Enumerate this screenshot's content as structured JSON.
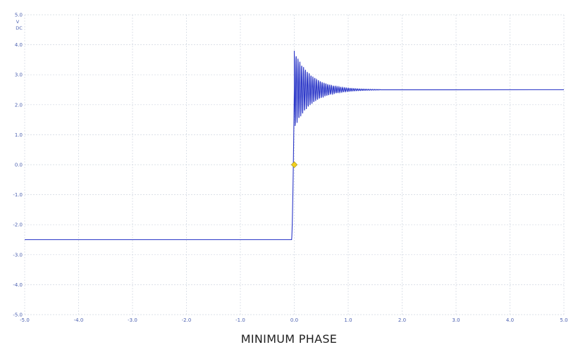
{
  "caption": "MINIMUM PHASE",
  "chart_data": {
    "type": "line",
    "units": {
      "line1": "V",
      "line2": "DC"
    },
    "xlim": [
      -5.0,
      5.0
    ],
    "ylim": [
      -5.0,
      5.0
    ],
    "xticks": [
      "-5.0",
      "-4.0",
      "-3.0",
      "-2.0",
      "-1.0",
      "0.0",
      "1.0",
      "2.0",
      "3.0",
      "4.0",
      "5.0"
    ],
    "yticks": [
      "5.0",
      "4.0",
      "3.0",
      "2.0",
      "1.0",
      "0.0",
      "-1.0",
      "-2.0",
      "-3.0",
      "-4.0",
      "-5.0"
    ],
    "grid": true,
    "series": [
      {
        "color": "#2b37c8",
        "baseline_before": -2.5,
        "final_value": 2.5,
        "rise_start": -0.05,
        "rise_end": 0.0,
        "peak_value": 3.8,
        "first_trough": 1.65,
        "settle_time": 1.3
      }
    ],
    "marker": {
      "x": 0.0,
      "y": 0.0,
      "color": "#f2d020"
    }
  }
}
